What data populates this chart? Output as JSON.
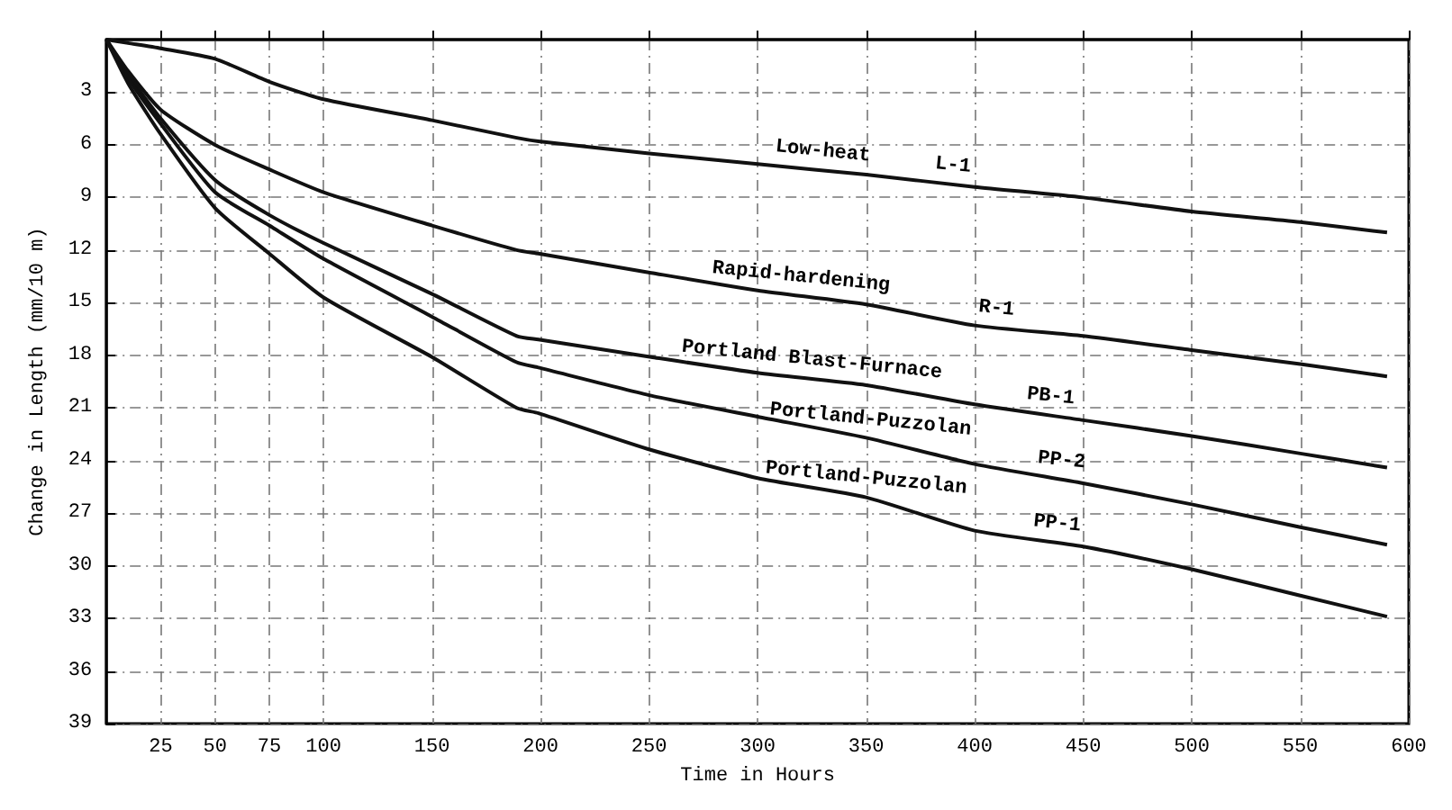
{
  "chart_data": {
    "type": "line",
    "xlabel": "Time in Hours",
    "ylabel": "Change in Length (mm/10 m)",
    "x": [
      0,
      10,
      25,
      50,
      75,
      100,
      150,
      189,
      199,
      251,
      300,
      350,
      400,
      450,
      500,
      550,
      590
    ],
    "series": [
      {
        "color": "#111111",
        "values": [
          0,
          0.2,
          0.5,
          1.1,
          2.4,
          3.4,
          4.6,
          5.6,
          5.8,
          6.5,
          7.1,
          7.7,
          8.4,
          9.0,
          9.8,
          10.4,
          11.0
        ]
      },
      {
        "color": "#111111",
        "values": [
          0,
          1.8,
          4.0,
          6.0,
          7.4,
          8.7,
          10.6,
          12.0,
          12.2,
          13.3,
          14.3,
          15.1,
          16.3,
          16.9,
          17.7,
          18.5,
          19.2
        ]
      },
      {
        "color": "#111111",
        "values": [
          0,
          2.0,
          4.5,
          8.0,
          10.0,
          11.6,
          14.5,
          16.9,
          17.1,
          18.1,
          19.0,
          19.7,
          20.8,
          21.7,
          22.6,
          23.6,
          24.4
        ]
      },
      {
        "color": "#111111",
        "values": [
          0,
          2.2,
          4.8,
          8.7,
          10.6,
          12.5,
          15.8,
          18.4,
          18.7,
          20.3,
          21.5,
          22.7,
          24.2,
          25.3,
          26.5,
          27.8,
          28.8
        ]
      },
      {
        "color": "#111111",
        "values": [
          0,
          2.5,
          5.4,
          9.6,
          12.2,
          14.7,
          18.1,
          21.0,
          21.3,
          23.4,
          25.0,
          26.1,
          28.0,
          28.9,
          30.2,
          31.7,
          32.9
        ]
      }
    ],
    "annotations": [
      "Low-heat",
      "L-1",
      "Rapid-hardening",
      "R-1",
      "Portland Blast-Furnace",
      "PB-1",
      "Portland-Puzzolan",
      "PP-2",
      "Portland-Puzzolan",
      "PP-1"
    ],
    "xlim": [
      0,
      600
    ],
    "xticks": [
      25,
      50,
      75,
      100,
      150,
      200,
      250,
      300,
      350,
      400,
      450,
      500,
      550,
      600
    ],
    "ylim": [
      39,
      0
    ],
    "yticks": [
      3,
      6,
      9,
      12,
      15,
      18,
      21,
      24,
      27,
      30,
      33,
      36,
      39
    ],
    "grid": true,
    "marker": "none",
    "line_style": "solid"
  }
}
